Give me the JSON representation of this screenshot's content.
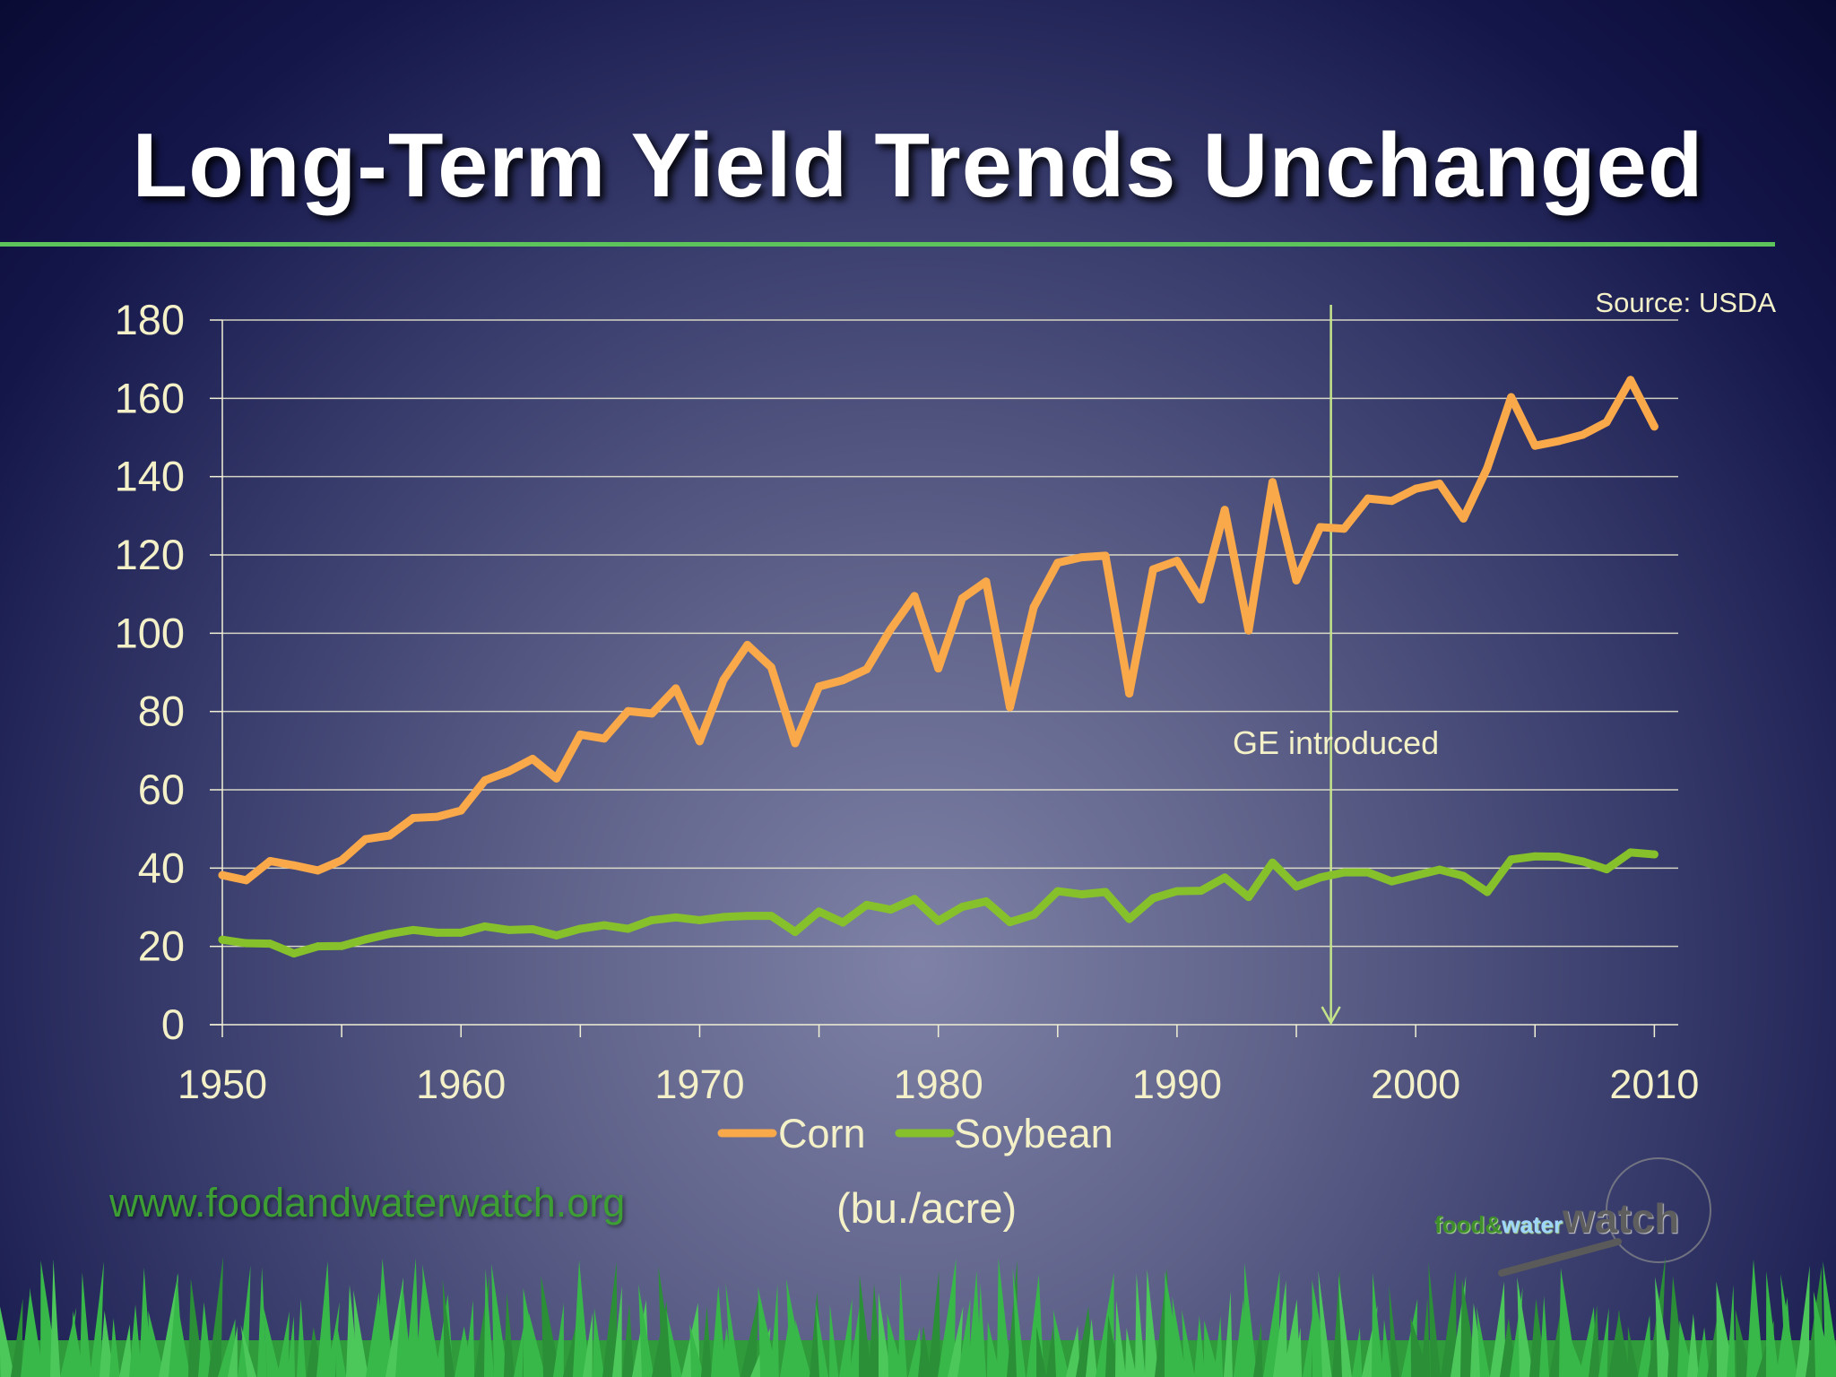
{
  "slide": {
    "title": "Long-Term Yield Trends Unchanged",
    "source": "Source: USDA",
    "website": "www.foodandwaterwatch.org",
    "units": "(bu./acre)",
    "logo": {
      "part1": "food",
      "part2": "&",
      "part3": "water",
      "part4": "watch"
    }
  },
  "colors": {
    "corn": "#f9a84a",
    "soybean": "#86c12c",
    "grid": "#f2f0d5",
    "annotation": "#c5e48a",
    "tick_text": "#f4f1c8"
  },
  "chart_data": {
    "type": "line",
    "title": "",
    "xlabel": "",
    "ylabel": "(bu./acre)",
    "xlim": [
      1950,
      2011
    ],
    "ylim": [
      0,
      180
    ],
    "yticks": [
      0,
      20,
      40,
      60,
      80,
      100,
      120,
      140,
      160,
      180
    ],
    "xticks": [
      1950,
      1960,
      1970,
      1980,
      1990,
      2000,
      2010
    ],
    "grid": true,
    "legend": "bottom",
    "x": [
      1950,
      1951,
      1952,
      1953,
      1954,
      1955,
      1956,
      1957,
      1958,
      1959,
      1960,
      1961,
      1962,
      1963,
      1964,
      1965,
      1966,
      1967,
      1968,
      1969,
      1970,
      1971,
      1972,
      1973,
      1974,
      1975,
      1976,
      1977,
      1978,
      1979,
      1980,
      1981,
      1982,
      1983,
      1984,
      1985,
      1986,
      1987,
      1988,
      1989,
      1990,
      1991,
      1992,
      1993,
      1994,
      1995,
      1996,
      1997,
      1998,
      1999,
      2000,
      2001,
      2002,
      2003,
      2004,
      2005,
      2006,
      2007,
      2008,
      2009,
      2010
    ],
    "series": [
      {
        "name": "Corn",
        "values": [
          38.2,
          36.9,
          41.8,
          40.7,
          39.4,
          42.0,
          47.4,
          48.3,
          52.8,
          53.1,
          54.7,
          62.4,
          64.7,
          67.9,
          62.9,
          74.1,
          73.1,
          80.1,
          79.5,
          85.9,
          72.4,
          88.1,
          97.0,
          91.3,
          71.9,
          86.4,
          88.0,
          90.8,
          101.0,
          109.5,
          91.0,
          108.9,
          113.2,
          81.1,
          106.7,
          118.0,
          119.4,
          119.8,
          84.6,
          116.3,
          118.5,
          108.6,
          131.5,
          100.7,
          138.6,
          113.5,
          127.1,
          126.7,
          134.4,
          133.8,
          136.9,
          138.2,
          129.3,
          142.2,
          160.3,
          147.9,
          149.1,
          150.7,
          153.9,
          164.7,
          152.8
        ]
      },
      {
        "name": "Soybean",
        "values": [
          21.7,
          20.8,
          20.7,
          18.2,
          20.0,
          20.1,
          21.8,
          23.2,
          24.2,
          23.5,
          23.5,
          25.1,
          24.2,
          24.4,
          22.8,
          24.5,
          25.4,
          24.5,
          26.7,
          27.4,
          26.7,
          27.5,
          27.8,
          27.8,
          23.7,
          28.9,
          26.1,
          30.6,
          29.4,
          32.1,
          26.5,
          30.1,
          31.5,
          26.2,
          28.1,
          34.1,
          33.3,
          33.9,
          27.0,
          32.3,
          34.1,
          34.2,
          37.6,
          32.6,
          41.4,
          35.3,
          37.6,
          38.9,
          38.9,
          36.6,
          38.1,
          39.6,
          38.0,
          33.9,
          42.2,
          43.0,
          42.9,
          41.7,
          39.7,
          44.0,
          43.5
        ]
      }
    ],
    "annotations": [
      {
        "text": "GE introduced",
        "x": 1996
      }
    ]
  }
}
